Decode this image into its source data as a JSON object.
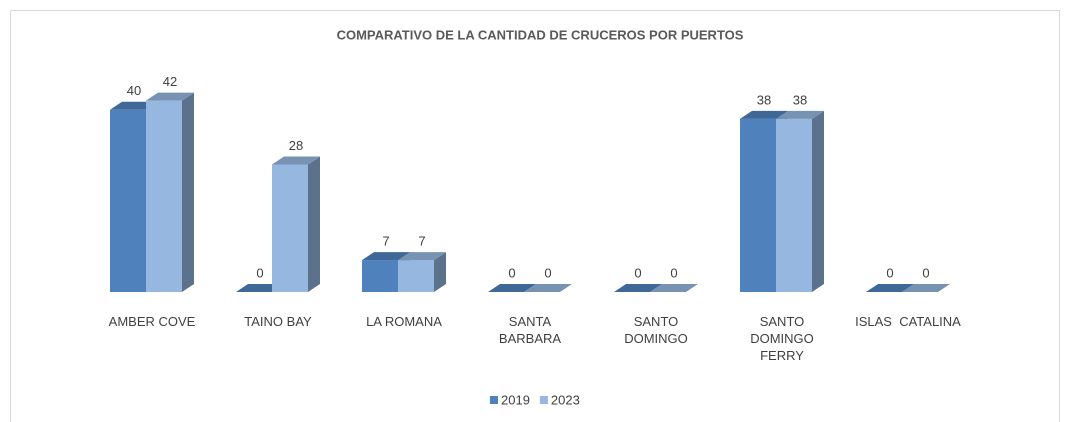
{
  "chart_data": {
    "type": "bar3d",
    "title": "COMPARATIVO DE LA CANTIDAD DE CRUCEROS  POR PUERTOS",
    "categories": [
      "AMBER COVE",
      "TAINO BAY",
      "LA ROMANA",
      "SANTA\nBARBARA",
      "SANTO\nDOMINGO",
      "SANTO\nDOMINGO\nFERRY",
      "ISLAS  CATALINA"
    ],
    "series": [
      {
        "name": "2019",
        "color": "#4f81bd",
        "values": [
          40,
          0,
          7,
          0,
          0,
          38,
          0
        ]
      },
      {
        "name": "2023",
        "color": "#95b7e0",
        "values": [
          42,
          28,
          7,
          0,
          0,
          38,
          0
        ]
      }
    ],
    "ylim": [
      0,
      45
    ]
  }
}
